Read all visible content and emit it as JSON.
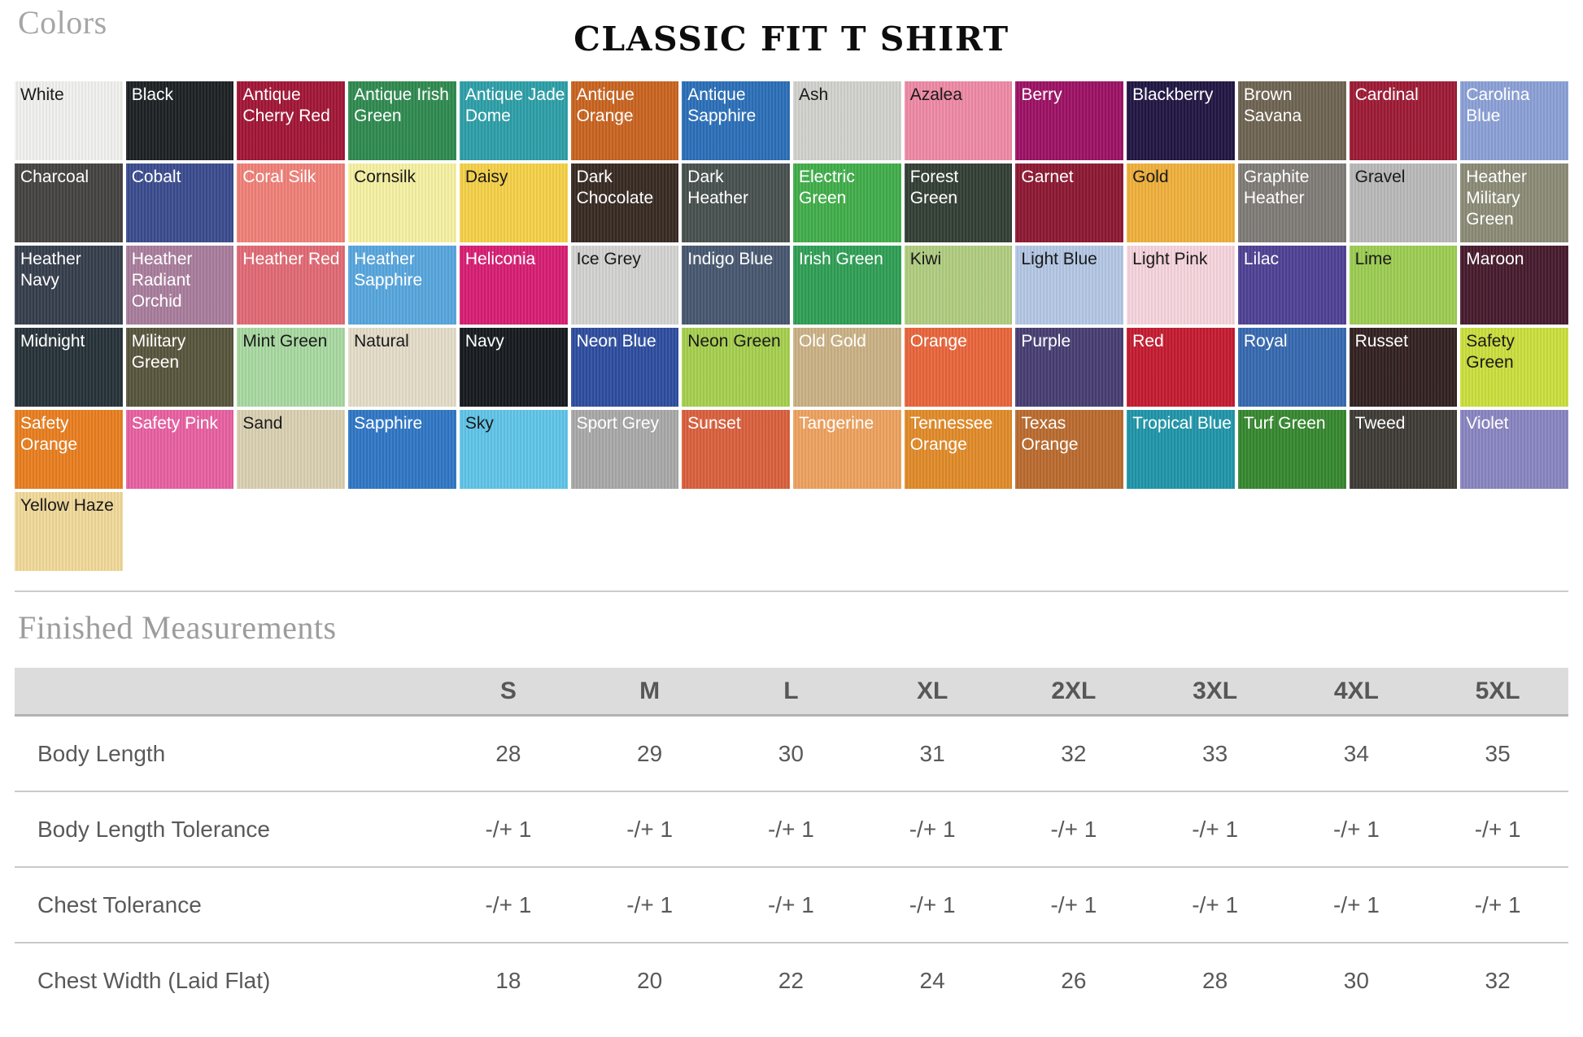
{
  "page": {
    "colors_heading": "Colors",
    "title": "CLASSIC FIT T SHIRT",
    "measurements_heading": "Finished Measurements"
  },
  "swatches": [
    {
      "name": "White",
      "bg": "#f1f1ef",
      "fg": "#1a1a1a"
    },
    {
      "name": "Black",
      "bg": "#1d2124",
      "fg": "#ffffff"
    },
    {
      "name": "Antique Cherry Red",
      "bg": "#a21636",
      "fg": "#ffffff"
    },
    {
      "name": "Antique Irish Green",
      "bg": "#2f8a50",
      "fg": "#ffffff"
    },
    {
      "name": "Antique Jade Dome",
      "bg": "#2d9fa8",
      "fg": "#ffffff"
    },
    {
      "name": "Antique Orange",
      "bg": "#c96420",
      "fg": "#ffffff"
    },
    {
      "name": "Antique Sapphire",
      "bg": "#2b6fb8",
      "fg": "#ffffff"
    },
    {
      "name": "Ash",
      "bg": "#d2d2cf",
      "fg": "#1a1a1a"
    },
    {
      "name": "Azalea",
      "bg": "#ef8aa6",
      "fg": "#1a1a1a"
    },
    {
      "name": "Berry",
      "bg": "#9d1164",
      "fg": "#ffffff"
    },
    {
      "name": "Blackberry",
      "bg": "#211643",
      "fg": "#ffffff"
    },
    {
      "name": "Brown Savana",
      "bg": "#6f6452",
      "fg": "#ffffff"
    },
    {
      "name": "Cardinal",
      "bg": "#9e1a35",
      "fg": "#ffffff"
    },
    {
      "name": "Carolina Blue",
      "bg": "#8ba0d6",
      "fg": "#ffffff"
    },
    {
      "name": "Charcoal",
      "bg": "#454341",
      "fg": "#ffffff"
    },
    {
      "name": "Cobalt",
      "bg": "#3b4b8e",
      "fg": "#ffffff"
    },
    {
      "name": "Coral Silk",
      "bg": "#f08178",
      "fg": "#ffffff"
    },
    {
      "name": "Cornsilk",
      "bg": "#f6f1a3",
      "fg": "#1a1a1a"
    },
    {
      "name": "Daisy",
      "bg": "#f5d148",
      "fg": "#1a1a1a"
    },
    {
      "name": "Dark Chocolate",
      "bg": "#372a23",
      "fg": "#ffffff"
    },
    {
      "name": "Dark Heather",
      "bg": "#48514f",
      "fg": "#ffffff"
    },
    {
      "name": "Electric Green",
      "bg": "#41ae4a",
      "fg": "#ffffff"
    },
    {
      "name": "Forest Green",
      "bg": "#333e34",
      "fg": "#ffffff"
    },
    {
      "name": "Garnet",
      "bg": "#8d1832",
      "fg": "#ffffff"
    },
    {
      "name": "Gold",
      "bg": "#f0b13c",
      "fg": "#1a1a1a"
    },
    {
      "name": "Graphite Heather",
      "bg": "#7f7b77",
      "fg": "#ffffff"
    },
    {
      "name": "Gravel",
      "bg": "#b9b9b9",
      "fg": "#1a1a1a"
    },
    {
      "name": "Heather Military Green",
      "bg": "#8b8b77",
      "fg": "#ffffff"
    },
    {
      "name": "Heather Navy",
      "bg": "#363e4d",
      "fg": "#ffffff"
    },
    {
      "name": "Heather Radiant Orchid",
      "bg": "#a87d9c",
      "fg": "#ffffff"
    },
    {
      "name": "Heather Red",
      "bg": "#e16a75",
      "fg": "#ffffff"
    },
    {
      "name": "Heather Sapphire",
      "bg": "#57a6de",
      "fg": "#ffffff"
    },
    {
      "name": "Heliconia",
      "bg": "#d71e73",
      "fg": "#ffffff"
    },
    {
      "name": "Ice Grey",
      "bg": "#d3d4d1",
      "fg": "#1a1a1a"
    },
    {
      "name": "Indigo Blue",
      "bg": "#47576f",
      "fg": "#ffffff"
    },
    {
      "name": "Irish Green",
      "bg": "#2f9f55",
      "fg": "#ffffff"
    },
    {
      "name": "Kiwi",
      "bg": "#b1cd80",
      "fg": "#1a1a1a"
    },
    {
      "name": "Light Blue",
      "bg": "#b4c7e4",
      "fg": "#1a1a1a"
    },
    {
      "name": "Light Pink",
      "bg": "#f7d5dd",
      "fg": "#1a1a1a"
    },
    {
      "name": "Lilac",
      "bg": "#4f4194",
      "fg": "#ffffff"
    },
    {
      "name": "Lime",
      "bg": "#9dcd53",
      "fg": "#1a1a1a"
    },
    {
      "name": "Maroon",
      "bg": "#471b2d",
      "fg": "#ffffff"
    },
    {
      "name": "Midnight",
      "bg": "#273339",
      "fg": "#ffffff"
    },
    {
      "name": "Military Green",
      "bg": "#58553d",
      "fg": "#ffffff"
    },
    {
      "name": "Mint Green",
      "bg": "#a9d9a1",
      "fg": "#1a1a1a"
    },
    {
      "name": "Natural",
      "bg": "#e4ddc9",
      "fg": "#1a1a1a"
    },
    {
      "name": "Navy",
      "bg": "#161a1f",
      "fg": "#ffffff"
    },
    {
      "name": "Neon Blue",
      "bg": "#2d4d9f",
      "fg": "#ffffff"
    },
    {
      "name": "Neon Green",
      "bg": "#a7d04f",
      "fg": "#1a1a1a"
    },
    {
      "name": "Old Gold",
      "bg": "#cab285",
      "fg": "#ffffff"
    },
    {
      "name": "Orange",
      "bg": "#e9653b",
      "fg": "#ffffff"
    },
    {
      "name": "Purple",
      "bg": "#483e73",
      "fg": "#ffffff"
    },
    {
      "name": "Red",
      "bg": "#c51b30",
      "fg": "#ffffff"
    },
    {
      "name": "Royal",
      "bg": "#3769b1",
      "fg": "#ffffff"
    },
    {
      "name": "Russet",
      "bg": "#322120",
      "fg": "#ffffff"
    },
    {
      "name": "Safety Green",
      "bg": "#cbdf3d",
      "fg": "#1a1a1a"
    },
    {
      "name": "Safety Orange",
      "bg": "#e97e1f",
      "fg": "#ffffff"
    },
    {
      "name": "Safety Pink",
      "bg": "#e860a1",
      "fg": "#ffffff"
    },
    {
      "name": "Sand",
      "bg": "#dad1b3",
      "fg": "#1a1a1a"
    },
    {
      "name": "Sapphire",
      "bg": "#2f77c5",
      "fg": "#ffffff"
    },
    {
      "name": "Sky",
      "bg": "#60c5e9",
      "fg": "#1a1a1a"
    },
    {
      "name": "Sport Grey",
      "bg": "#a9a9a9",
      "fg": "#ffffff"
    },
    {
      "name": "Sunset",
      "bg": "#da603d",
      "fg": "#ffffff"
    },
    {
      "name": "Tangerine",
      "bg": "#eea25f",
      "fg": "#ffffff"
    },
    {
      "name": "Tennessee Orange",
      "bg": "#e18b29",
      "fg": "#ffffff"
    },
    {
      "name": "Texas Orange",
      "bg": "#ba6b2e",
      "fg": "#ffffff"
    },
    {
      "name": "Tropical Blue",
      "bg": "#1f96a9",
      "fg": "#ffffff"
    },
    {
      "name": "Turf Green",
      "bg": "#36882f",
      "fg": "#ffffff"
    },
    {
      "name": "Tweed",
      "bg": "#3e3b37",
      "fg": "#ffffff"
    },
    {
      "name": "Violet",
      "bg": "#8985c1",
      "fg": "#ffffff"
    },
    {
      "name": "Yellow Haze",
      "bg": "#f1d999",
      "fg": "#1a1a1a"
    }
  ],
  "table": {
    "sizes": [
      "S",
      "M",
      "L",
      "XL",
      "2XL",
      "3XL",
      "4XL",
      "5XL"
    ],
    "rows": [
      {
        "label": "Body Length",
        "values": [
          "28",
          "29",
          "30",
          "31",
          "32",
          "33",
          "34",
          "35"
        ]
      },
      {
        "label": "Body Length Tolerance",
        "values": [
          "-/+ 1",
          "-/+ 1",
          "-/+ 1",
          "-/+ 1",
          "-/+ 1",
          "-/+ 1",
          "-/+ 1",
          "-/+ 1"
        ]
      },
      {
        "label": "Chest Tolerance",
        "values": [
          "-/+ 1",
          "-/+ 1",
          "-/+ 1",
          "-/+ 1",
          "-/+ 1",
          "-/+ 1",
          "-/+ 1",
          "-/+ 1"
        ]
      },
      {
        "label": "Chest Width (Laid Flat)",
        "values": [
          "18",
          "20",
          "22",
          "24",
          "26",
          "28",
          "30",
          "32"
        ]
      }
    ]
  }
}
